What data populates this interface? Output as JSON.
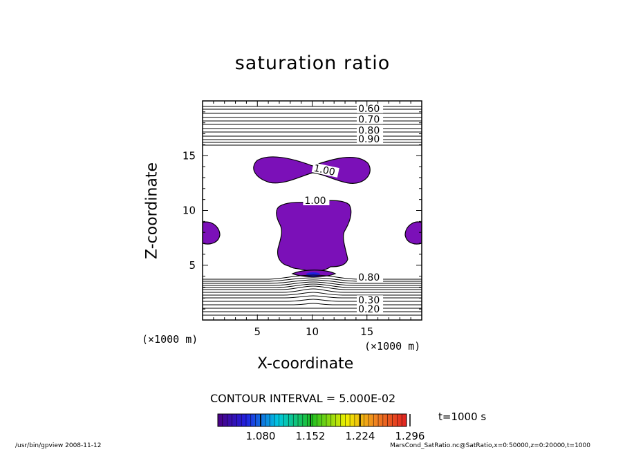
{
  "chart_data": {
    "type": "contour",
    "title": "saturation ratio",
    "xlabel": "X-coordinate",
    "ylabel": "Z-coordinate",
    "x_unit_left": "(×1000 m)",
    "x_unit_right": "(×1000 m)",
    "xlim": [
      0,
      20
    ],
    "ylim": [
      0,
      20
    ],
    "x_ticks": [
      5,
      10,
      15
    ],
    "y_ticks": [
      5,
      10,
      15
    ],
    "contour_interval_label": "CONTOUR INTERVAL = 5.000E-02",
    "time_label": "t=1000 s",
    "contour_labels": [
      {
        "text": "0.60",
        "x": 14.2,
        "y": 19.0
      },
      {
        "text": "0.70",
        "x": 14.2,
        "y": 18.0
      },
      {
        "text": "0.80",
        "x": 14.2,
        "y": 17.0
      },
      {
        "text": "0.90",
        "x": 14.2,
        "y": 16.2
      },
      {
        "text": "1.00",
        "x": 10.1,
        "y": 13.6,
        "rotate": 12
      },
      {
        "text": "1.00",
        "x": 9.3,
        "y": 10.6
      },
      {
        "text": "0.80",
        "x": 14.2,
        "y": 3.6
      },
      {
        "text": "0.30",
        "x": 14.2,
        "y": 1.5
      },
      {
        "text": "0.20",
        "x": 14.2,
        "y": 0.7
      }
    ],
    "supersaturated_regions": [
      {
        "name": "upper lobe",
        "x_range": [
          4.8,
          15.1
        ],
        "z_range": [
          12.4,
          14.7
        ]
      },
      {
        "name": "central column",
        "x_range": [
          6.8,
          13.3
        ],
        "z_range": [
          3.8,
          10.7
        ]
      },
      {
        "name": "left edge",
        "x_range": [
          0,
          1.6
        ],
        "z_range": [
          6.7,
          8.7
        ]
      },
      {
        "name": "right edge",
        "x_range": [
          18.5,
          20
        ],
        "z_range": [
          6.7,
          8.7
        ]
      }
    ],
    "colorbar": {
      "tick_labels": [
        "1.080",
        "1.152",
        "1.224",
        "1.296"
      ],
      "colors": [
        "#4b0082",
        "#2020e0",
        "#00c8e0",
        "#20c020",
        "#f0f000",
        "#f08020",
        "#e02020"
      ]
    },
    "fill_color": "#7b10b8"
  },
  "footer": {
    "left": "/usr/bin/gpview   2008-11-12",
    "right": "MarsCond_SatRatio.nc@SatRatio,x=0:50000,z=0:20000,t=1000"
  }
}
